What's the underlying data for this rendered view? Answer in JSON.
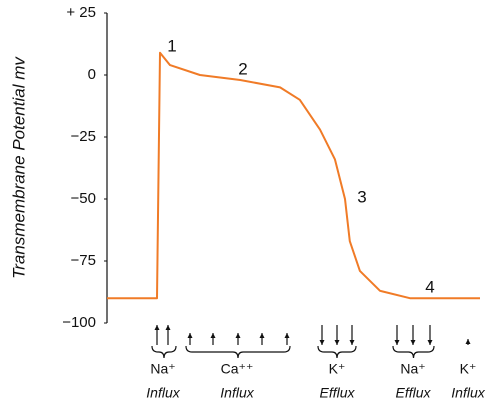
{
  "chart_data": {
    "type": "line",
    "y_label": "Transmembrane Potential mv",
    "xlim": [
      0,
      100
    ],
    "ylim": [
      -100,
      25
    ],
    "yticks": [
      {
        "value": 25,
        "label": "+ 25"
      },
      0,
      {
        "value": -25,
        "label": "−25"
      },
      {
        "value": -50,
        "label": "−50"
      },
      {
        "value": -75,
        "label": "−75"
      },
      {
        "value": -100,
        "label": "−100"
      }
    ],
    "series": [
      {
        "color": "#f07b27",
        "x": [
          0,
          13.4,
          14.2,
          16.9,
          24.9,
          35.7,
          46.4,
          51.7,
          57.1,
          61.1,
          63.8,
          65.1,
          67.8,
          73.2,
          81.2,
          100
        ],
        "values": [
          -90,
          -90,
          9,
          4,
          0,
          -2,
          -5,
          -10,
          -22,
          -34,
          -50,
          -67,
          -79,
          -87,
          -90,
          -90
        ]
      }
    ],
    "annotations": [
      "1",
      "2",
      "3",
      "4"
    ],
    "ions": [
      {
        "ion": "Na⁺",
        "flux": "Influx"
      },
      {
        "ion": "Ca⁺⁺",
        "flux": "Influx"
      },
      {
        "ion": "K⁺",
        "flux": "Efflux"
      },
      {
        "ion": "Na⁺",
        "flux": "Efflux"
      },
      {
        "ion": "K⁺",
        "flux": "Influx"
      }
    ]
  }
}
